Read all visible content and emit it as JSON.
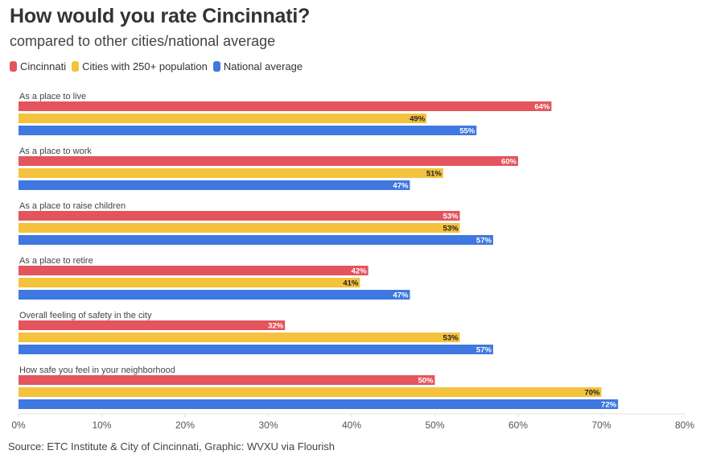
{
  "header": {
    "title": "How would you rate Cincinnati?",
    "subtitle": "compared to other cities/national average"
  },
  "legend": [
    {
      "label": "Cincinnati",
      "color": "#e3545d"
    },
    {
      "label": "Cities with 250+ population",
      "color": "#f4c23c"
    },
    {
      "label": "National average",
      "color": "#3e78e0"
    }
  ],
  "footer": {
    "source": "Source: ETC Institute & City of Cincinnati, Graphic: WVXU via Flourish"
  },
  "chart_data": {
    "type": "bar",
    "orientation": "horizontal",
    "title": "How would you rate Cincinnati?",
    "subtitle": "compared to other cities/national average",
    "xlabel": "",
    "ylabel": "",
    "xlim": [
      0,
      80
    ],
    "ticks": [
      "0%",
      "10%",
      "20%",
      "30%",
      "40%",
      "50%",
      "60%",
      "70%",
      "80%"
    ],
    "tick_values": [
      0,
      10,
      20,
      30,
      40,
      50,
      60,
      70,
      80
    ],
    "legend_position": "top-left",
    "grid": false,
    "categories": [
      "As a place to live",
      "As a place to work",
      "As a place to raise children",
      "As a place to retire",
      "Overall feeling of safety in the city",
      "How safe you feel in your neighborhood"
    ],
    "series": [
      {
        "name": "Cincinnati",
        "color": "#e3545d",
        "label_color": "#ffffff",
        "values": [
          64,
          60,
          53,
          42,
          32,
          50
        ]
      },
      {
        "name": "Cities with 250+ population",
        "color": "#f4c23c",
        "label_color": "#222222",
        "values": [
          49,
          51,
          53,
          41,
          53,
          70
        ]
      },
      {
        "name": "National average",
        "color": "#3e78e0",
        "label_color": "#ffffff",
        "values": [
          55,
          47,
          57,
          47,
          57,
          72
        ]
      }
    ],
    "value_suffix": "%"
  }
}
